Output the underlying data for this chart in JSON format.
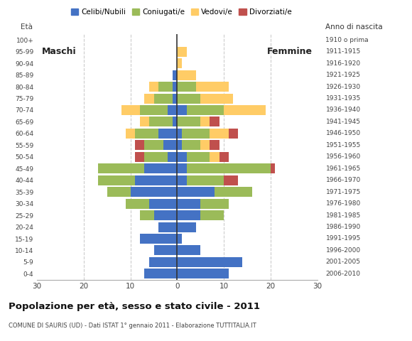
{
  "age_groups_bottom_to_top": [
    "0-4",
    "5-9",
    "10-14",
    "15-19",
    "20-24",
    "25-29",
    "30-34",
    "35-39",
    "40-44",
    "45-49",
    "50-54",
    "55-59",
    "60-64",
    "65-69",
    "70-74",
    "75-79",
    "80-84",
    "85-89",
    "90-94",
    "95-99",
    "100+"
  ],
  "birth_years_bottom_to_top": [
    "2006-2010",
    "2001-2005",
    "1996-2000",
    "1991-1995",
    "1986-1990",
    "1981-1985",
    "1976-1980",
    "1971-1975",
    "1966-1970",
    "1961-1965",
    "1956-1960",
    "1951-1955",
    "1946-1950",
    "1941-1945",
    "1936-1940",
    "1931-1935",
    "1926-1930",
    "1921-1925",
    "1916-1920",
    "1911-1915",
    "1910 o prima"
  ],
  "males": {
    "celibe": [
      7,
      6,
      5,
      8,
      4,
      5,
      6,
      10,
      9,
      7,
      2,
      3,
      4,
      1,
      2,
      1,
      1,
      1,
      0,
      0,
      0
    ],
    "coniugato": [
      0,
      0,
      0,
      0,
      0,
      3,
      5,
      5,
      8,
      10,
      5,
      4,
      5,
      5,
      6,
      4,
      3,
      0,
      0,
      0,
      0
    ],
    "vedovo": [
      0,
      0,
      0,
      0,
      0,
      0,
      0,
      0,
      0,
      0,
      0,
      0,
      2,
      2,
      4,
      2,
      2,
      0,
      0,
      0,
      0
    ],
    "divorziato": [
      0,
      0,
      0,
      0,
      0,
      0,
      0,
      0,
      0,
      0,
      2,
      2,
      0,
      0,
      0,
      0,
      0,
      0,
      0,
      0,
      0
    ]
  },
  "females": {
    "nubile": [
      11,
      14,
      5,
      1,
      4,
      5,
      5,
      8,
      2,
      2,
      2,
      1,
      1,
      0,
      2,
      0,
      0,
      0,
      0,
      0,
      0
    ],
    "coniugata": [
      0,
      0,
      0,
      0,
      0,
      5,
      6,
      8,
      8,
      18,
      5,
      4,
      6,
      5,
      8,
      5,
      4,
      0,
      0,
      0,
      0
    ],
    "vedova": [
      0,
      0,
      0,
      0,
      0,
      0,
      0,
      0,
      0,
      0,
      2,
      2,
      4,
      2,
      9,
      7,
      7,
      4,
      1,
      2,
      0
    ],
    "divorziata": [
      0,
      0,
      0,
      0,
      0,
      0,
      0,
      0,
      3,
      1,
      2,
      2,
      2,
      2,
      0,
      0,
      0,
      0,
      0,
      0,
      0
    ]
  },
  "colors": {
    "celibe": "#4472C4",
    "coniugato": "#9BBB59",
    "vedovo": "#FFCC66",
    "divorziato": "#C0504D"
  },
  "xlim": 30,
  "title": "Popolazione per età, sesso e stato civile - 2011",
  "subtitle": "COMUNE DI SAURIS (UD) - Dati ISTAT 1° gennaio 2011 - Elaborazione TUTTITALIA.IT",
  "ylabel_left": "Età",
  "ylabel_right": "Anno di nascita",
  "label_maschi": "Maschi",
  "label_femmine": "Femmine",
  "legend_labels": [
    "Celibi/Nubili",
    "Coniugati/e",
    "Vedovi/e",
    "Divorziati/e"
  ],
  "background_color": "#ffffff",
  "xticks": [
    0,
    10,
    20,
    30
  ],
  "grid_color": "#cccccc",
  "spine_color": "#aaaaaa"
}
